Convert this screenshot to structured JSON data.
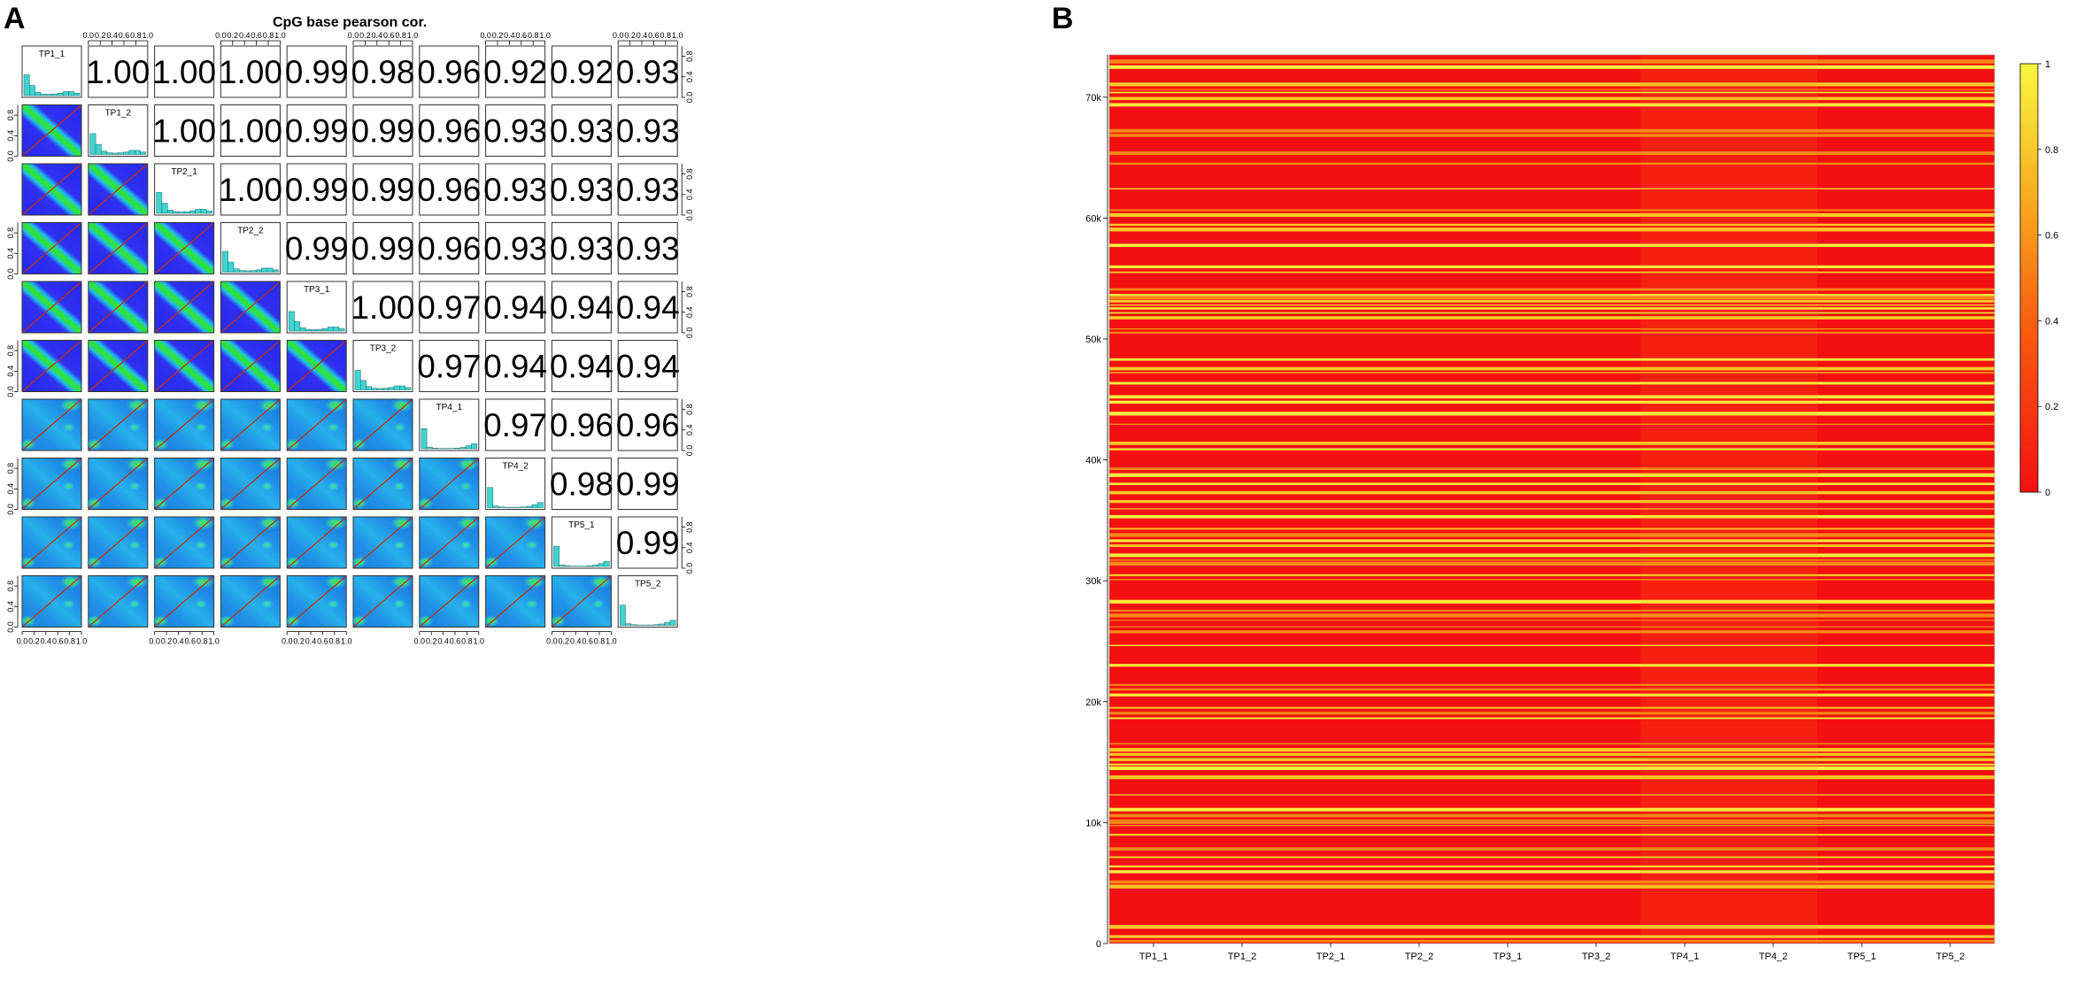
{
  "panels": {
    "a_letter": "A",
    "b_letter": "B"
  },
  "colors": {
    "hist_fill": "#40d4d0",
    "hist_stroke": "#1a6a6a",
    "density_low": "#2020e8",
    "density_mid": "#20b0e0",
    "density_high": "#30e040",
    "fit_line": "#c03010",
    "heat_low": "#f41010",
    "heat_high": "#f8f040"
  },
  "chart_data": [
    {
      "type": "table",
      "subtype": "pairs-correlation-matrix",
      "title": "CpG base pearson cor.",
      "samples": [
        "TP1_1",
        "TP1_2",
        "TP2_1",
        "TP2_2",
        "TP3_1",
        "TP3_2",
        "TP4_1",
        "TP4_2",
        "TP5_1",
        "TP5_2"
      ],
      "axis_ticks": [
        "0.0",
        "0.2",
        "0.4",
        "0.6",
        "0.8",
        "1.0"
      ],
      "correlations_upper": [
        [
          "1.00",
          "1.00",
          "1.00",
          "0.99",
          "0.98",
          "0.96",
          "0.92",
          "0.92",
          "0.93"
        ],
        [
          "1.00",
          "1.00",
          "0.99",
          "0.99",
          "0.96",
          "0.93",
          "0.93",
          "0.93"
        ],
        [
          "1.00",
          "0.99",
          "0.99",
          "0.96",
          "0.93",
          "0.93",
          "0.93"
        ],
        [
          "0.99",
          "0.99",
          "0.96",
          "0.93",
          "0.93",
          "0.93"
        ],
        [
          "1.00",
          "0.97",
          "0.94",
          "0.94",
          "0.94"
        ],
        [
          "0.97",
          "0.94",
          "0.94",
          "0.94"
        ],
        [
          "0.97",
          "0.96",
          "0.96"
        ],
        [
          "0.98",
          "0.99"
        ],
        [
          "0.99"
        ]
      ],
      "histograms": {
        "bins": [
          0.05,
          0.15,
          0.25,
          0.35,
          0.45,
          0.55,
          0.65,
          0.75,
          0.85,
          0.95
        ],
        "TP1_1": [
          0.62,
          0.3,
          0.1,
          0.05,
          0.04,
          0.05,
          0.07,
          0.12,
          0.12,
          0.07
        ],
        "TP1_2": [
          0.62,
          0.3,
          0.1,
          0.05,
          0.04,
          0.05,
          0.07,
          0.12,
          0.12,
          0.07
        ],
        "TP2_1": [
          0.62,
          0.3,
          0.1,
          0.05,
          0.04,
          0.05,
          0.07,
          0.12,
          0.12,
          0.07
        ],
        "TP2_2": [
          0.62,
          0.3,
          0.1,
          0.05,
          0.04,
          0.05,
          0.07,
          0.12,
          0.12,
          0.07
        ],
        "TP3_1": [
          0.58,
          0.28,
          0.1,
          0.05,
          0.04,
          0.05,
          0.07,
          0.12,
          0.12,
          0.07
        ],
        "TP3_2": [
          0.58,
          0.28,
          0.1,
          0.05,
          0.04,
          0.05,
          0.07,
          0.12,
          0.12,
          0.07
        ],
        "TP4_1": [
          0.6,
          0.05,
          0.02,
          0.01,
          0.01,
          0.01,
          0.02,
          0.04,
          0.09,
          0.15
        ],
        "TP4_2": [
          0.6,
          0.05,
          0.02,
          0.01,
          0.01,
          0.01,
          0.02,
          0.04,
          0.09,
          0.15
        ],
        "TP5_1": [
          0.6,
          0.05,
          0.02,
          0.01,
          0.01,
          0.01,
          0.02,
          0.04,
          0.09,
          0.15
        ],
        "TP5_2": [
          0.6,
          0.05,
          0.02,
          0.01,
          0.01,
          0.01,
          0.02,
          0.04,
          0.09,
          0.15
        ]
      }
    },
    {
      "type": "heatmap",
      "x_labels": [
        "TP1_1",
        "TP1_2",
        "TP2_1",
        "TP2_2",
        "TP3_1",
        "TP3_2",
        "TP4_1",
        "TP4_2",
        "TP5_1",
        "TP5_2"
      ],
      "y_ticks": [
        {
          "value": 0,
          "label": "0"
        },
        {
          "value": 10000,
          "label": "10k"
        },
        {
          "value": 20000,
          "label": "20k"
        },
        {
          "value": 30000,
          "label": "30k"
        },
        {
          "value": 40000,
          "label": "40k"
        },
        {
          "value": 50000,
          "label": "50k"
        },
        {
          "value": 60000,
          "label": "60k"
        },
        {
          "value": 70000,
          "label": "70k"
        }
      ],
      "y_range": [
        0,
        73500
      ],
      "colorbar_ticks": [
        {
          "value": 0,
          "label": "0"
        },
        {
          "value": 0.2,
          "label": "0.2"
        },
        {
          "value": 0.4,
          "label": "0.4"
        },
        {
          "value": 0.6,
          "label": "0.6"
        },
        {
          "value": 0.8,
          "label": "0.8"
        },
        {
          "value": 1,
          "label": "1"
        }
      ],
      "value_range": [
        0,
        1
      ]
    }
  ]
}
